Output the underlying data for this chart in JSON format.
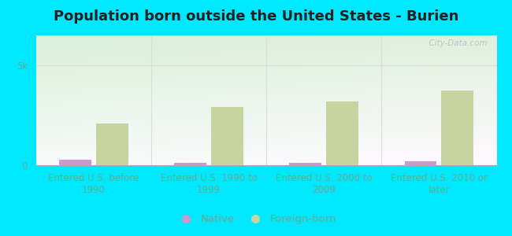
{
  "title": "Population born outside the United States - Burien",
  "categories": [
    "Entered U.S. before\n1990",
    "Entered U.S. 1990 to\n1999",
    "Entered U.S. 2000 to\n2009",
    "Entered U.S. 2010 or\nlater"
  ],
  "native_values": [
    280,
    130,
    120,
    190
  ],
  "foreign_values": [
    2100,
    2900,
    3200,
    3750
  ],
  "native_color": "#cc99cc",
  "foreign_color": "#c8d4a0",
  "ylim": [
    0,
    6500
  ],
  "yticks": [
    0,
    5000
  ],
  "ytick_labels": [
    "0",
    "5k"
  ],
  "bar_width": 0.28,
  "background_outer": "#00e8ff",
  "grid_color": "#dddddd",
  "title_fontsize": 13,
  "axis_label_fontsize": 8.5,
  "legend_fontsize": 9.5,
  "tick_color": "#6aaa88",
  "watermark_text": "  City-Data.com"
}
